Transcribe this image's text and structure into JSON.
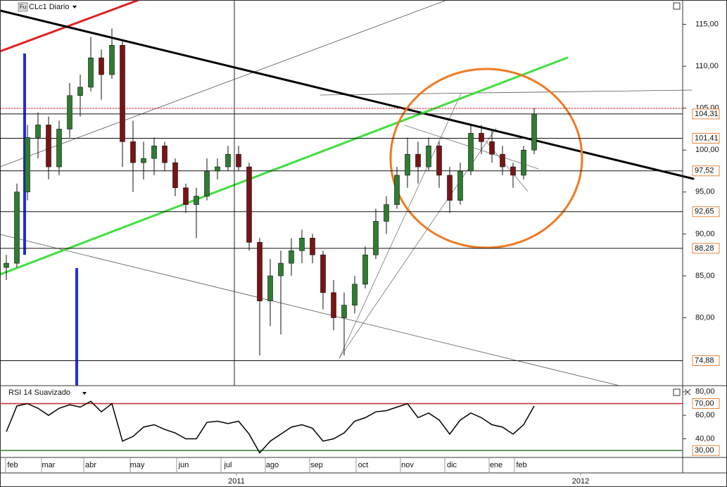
{
  "chart_data": [
    {
      "type": "candlestick",
      "title": "CLc1 Diario",
      "icon_label": "Fu",
      "x": [
        2,
        7,
        12,
        17,
        22,
        27,
        32,
        37,
        42,
        47,
        52,
        57,
        62,
        67,
        72,
        77,
        82,
        87,
        92,
        97,
        102,
        107,
        112,
        117,
        122,
        127,
        132,
        137,
        142,
        147,
        152,
        157,
        162,
        167,
        172,
        177,
        182,
        187,
        192,
        197,
        202,
        207,
        212,
        217,
        222,
        227,
        232,
        237,
        242,
        247,
        252
      ],
      "open": [
        86,
        86.5,
        95,
        101.5,
        103,
        98,
        102.5,
        106.5,
        107.5,
        111,
        109,
        112.5,
        101,
        98.5,
        99,
        100.5,
        98.5,
        95.5,
        93.5,
        94.5,
        97.5,
        98,
        99.5,
        98,
        89,
        82,
        85,
        86.5,
        88,
        89.5,
        87.5,
        83,
        80,
        81.5,
        84,
        87.5,
        91.5,
        93.5,
        97,
        99.5,
        98,
        100.5,
        97,
        94,
        97.5,
        102,
        101,
        99.5,
        98,
        97,
        100
      ],
      "high": [
        87.5,
        96,
        103,
        104.5,
        104,
        103.5,
        108,
        109,
        113.5,
        112,
        114.5,
        113,
        103.5,
        101,
        101.5,
        101,
        99,
        96,
        95.5,
        99,
        99,
        100.5,
        100.5,
        98.5,
        89.5,
        87,
        88,
        89.5,
        90.5,
        90,
        88,
        84.5,
        83,
        85,
        88.5,
        93,
        94.5,
        98,
        101.5,
        101,
        101.5,
        101,
        98,
        98.5,
        103,
        103,
        102.5,
        100.5,
        98.5,
        100.5,
        105
      ],
      "low": [
        84.5,
        86,
        94,
        99,
        96.5,
        97,
        101.5,
        104,
        107,
        106,
        108.5,
        98,
        95,
        96.5,
        97,
        97.5,
        94.5,
        92.5,
        89.5,
        94,
        96.5,
        97.5,
        97.5,
        88,
        75.5,
        79,
        78,
        85,
        86.5,
        86.5,
        81,
        78.5,
        75.5,
        80.5,
        83.5,
        87,
        90,
        93,
        95.5,
        96,
        97.5,
        95.5,
        92.5,
        93.5,
        97,
        99.5,
        98.5,
        97,
        95.5,
        96.5,
        99.5
      ],
      "close": [
        86.5,
        95,
        101.5,
        103,
        98,
        102.5,
        106.5,
        107.5,
        111,
        109,
        112.5,
        101,
        98.5,
        99,
        100.5,
        98.5,
        95.5,
        93.5,
        94.5,
        97.5,
        98,
        99.5,
        98,
        89,
        82,
        85,
        86.5,
        88,
        89.5,
        87.5,
        83,
        80,
        81.5,
        84,
        87.5,
        91.5,
        93.5,
        97,
        99.5,
        98,
        100.5,
        97,
        94,
        97.5,
        102,
        101,
        99.5,
        98,
        97,
        100,
        104.3
      ],
      "up_color": "#2f7d32",
      "down_color": "#7a1414",
      "xlim": [
        -1,
        322.33
      ],
      "ylim": [
        71.9,
        117.9
      ],
      "yticks": [
        {
          "value": 80,
          "label": "80,00"
        },
        {
          "value": 85,
          "label": "85,00"
        },
        {
          "value": 90,
          "label": "90,00"
        },
        {
          "value": 95,
          "label": "95,00"
        },
        {
          "value": 100,
          "label": "100,00"
        },
        {
          "value": 105,
          "label": "105,00"
        },
        {
          "value": 110,
          "label": "110,00"
        },
        {
          "value": 115,
          "label": "115,00"
        }
      ],
      "levels": [
        {
          "value": 104.31,
          "label": "104,31"
        },
        {
          "value": 101.41,
          "label": "101,41"
        },
        {
          "value": 97.52,
          "label": "97,52"
        },
        {
          "value": 92.65,
          "label": "92,65"
        },
        {
          "value": 88.28,
          "label": "88,28"
        },
        {
          "value": 74.88,
          "label": "74,88"
        }
      ],
      "level_color": "#111111",
      "level_label_color": "#c0392b"
    },
    {
      "type": "line",
      "title": "RSI 14 Suavizado",
      "x": [
        2,
        7,
        12,
        17,
        22,
        27,
        32,
        37,
        42,
        47,
        52,
        57,
        62,
        67,
        72,
        77,
        82,
        87,
        92,
        97,
        102,
        107,
        112,
        117,
        122,
        127,
        132,
        137,
        142,
        147,
        152,
        157,
        162,
        167,
        172,
        177,
        182,
        187,
        192,
        197,
        202,
        207,
        212,
        217,
        222,
        227,
        232,
        237,
        242,
        247,
        252
      ],
      "values": [
        46,
        68,
        70,
        66,
        60,
        66,
        69,
        67,
        72,
        63,
        70,
        38,
        42,
        50,
        52,
        48,
        45,
        40,
        40,
        54,
        55,
        53,
        55,
        44,
        28,
        38,
        44,
        50,
        52,
        49,
        38,
        40,
        45,
        55,
        58,
        63,
        64,
        67,
        70,
        58,
        62,
        56,
        44,
        56,
        62,
        58,
        52,
        50,
        44,
        52,
        68
      ],
      "color": "#000000",
      "xlim": [
        -1,
        322.33
      ],
      "ylim": [
        24.1,
        84.1
      ],
      "yticks": [
        {
          "value": 40,
          "label": "40,00"
        },
        {
          "value": 60,
          "label": "60,00"
        },
        {
          "value": 80,
          "label": "80,00"
        }
      ],
      "levels": [
        {
          "value": 70,
          "label": "70,00",
          "color": "#c62828"
        },
        {
          "value": 30,
          "label": "30,00",
          "color": "#2e7d32"
        }
      ],
      "xticks": [
        {
          "value": 5,
          "label": "feb"
        },
        {
          "value": 22,
          "label": "mar"
        },
        {
          "value": 42,
          "label": "abr"
        },
        {
          "value": 64,
          "label": "may"
        },
        {
          "value": 86,
          "label": "jun"
        },
        {
          "value": 107,
          "label": "jul"
        },
        {
          "value": 128,
          "label": "ago"
        },
        {
          "value": 149,
          "label": "sep"
        },
        {
          "value": 171,
          "label": "oct"
        },
        {
          "value": 192,
          "label": "nov"
        },
        {
          "value": 213,
          "label": "dic"
        },
        {
          "value": 234,
          "label": "ene"
        },
        {
          "value": 246,
          "label": "feb"
        }
      ],
      "year_ticks": [
        {
          "value": 111,
          "label": "2011"
        },
        {
          "value": 274,
          "label": "2012"
        }
      ]
    }
  ]
}
